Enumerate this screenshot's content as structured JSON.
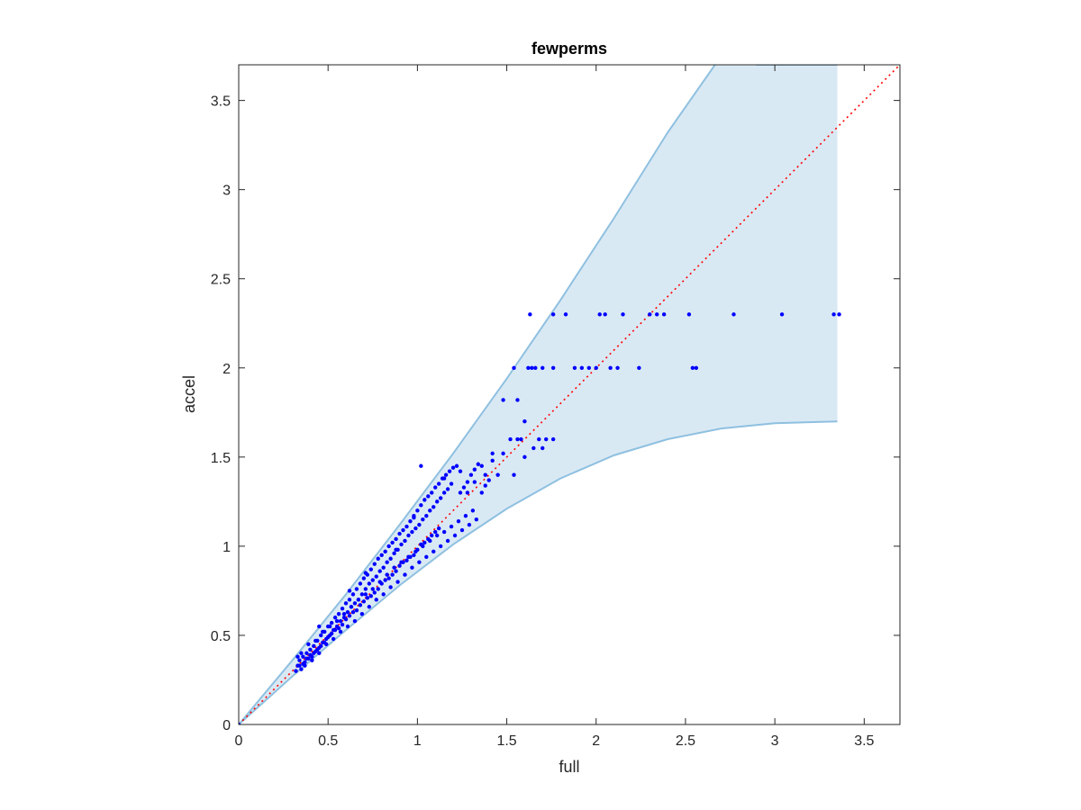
{
  "chart_data": {
    "type": "scatter",
    "title": "fewperms",
    "xlabel": "full",
    "ylabel": "accel",
    "xlim": [
      0,
      3.7
    ],
    "ylim": [
      0,
      3.7
    ],
    "xticks": [
      0,
      0.5,
      1,
      1.5,
      2,
      2.5,
      3,
      3.5
    ],
    "yticks": [
      0,
      0.5,
      1,
      1.5,
      2,
      2.5,
      3,
      3.5
    ],
    "xtick_labels": [
      "0",
      "0.5",
      "1",
      "1.5",
      "2",
      "2.5",
      "3",
      "3.5"
    ],
    "ytick_labels": [
      "0",
      "0.5",
      "1",
      "1.5",
      "2",
      "2.5",
      "3",
      "3.5"
    ],
    "grid": false,
    "colors": {
      "band_fill": "#d9e9f4",
      "band_edge": "#8fc0e0",
      "points": "#0000ff",
      "reference": "#ff0000",
      "axes": "#262626"
    },
    "reference_line": {
      "x": [
        0,
        3.7
      ],
      "y": [
        0,
        3.7
      ],
      "style": "dotted"
    },
    "band": {
      "upper": {
        "x": [
          0,
          0.3,
          0.6,
          0.9,
          1.2,
          1.5,
          1.8,
          2.1,
          2.4,
          2.7,
          2.9,
          3.35
        ],
        "y": [
          0,
          0.36,
          0.73,
          1.12,
          1.52,
          1.94,
          2.38,
          2.84,
          3.32,
          3.75,
          3.7,
          3.7
        ]
      },
      "lower": {
        "x": [
          0,
          0.3,
          0.6,
          0.9,
          1.2,
          1.5,
          1.8,
          2.1,
          2.4,
          2.7,
          3.0,
          3.35
        ],
        "y": [
          0,
          0.27,
          0.53,
          0.78,
          1.01,
          1.21,
          1.38,
          1.51,
          1.6,
          1.66,
          1.69,
          1.7
        ]
      }
    },
    "series": [
      {
        "x": [
          0.32,
          0.33,
          0.34,
          0.35,
          0.36,
          0.37,
          0.38,
          0.39,
          0.4,
          0.41,
          0.42,
          0.43,
          0.44,
          0.45,
          0.46,
          0.47,
          0.48,
          0.49,
          0.5,
          0.51,
          0.52,
          0.53,
          0.54,
          0.55,
          0.56,
          0.57,
          0.58,
          0.59,
          0.6,
          0.61,
          0.62,
          0.63,
          0.64,
          0.65,
          0.66,
          0.67,
          0.68,
          0.69,
          0.7,
          0.71,
          0.72,
          0.73,
          0.74,
          0.75,
          0.76,
          0.77,
          0.78,
          0.79,
          0.8,
          0.81,
          0.82,
          0.83,
          0.84,
          0.85,
          0.86,
          0.87,
          0.88,
          0.89,
          0.9,
          0.91,
          0.92,
          0.93,
          0.94,
          0.95,
          0.96,
          0.97,
          0.98,
          0.99,
          1.0,
          1.01,
          1.02,
          1.03,
          1.04,
          1.05,
          1.06,
          1.07,
          1.08,
          1.09,
          1.1,
          1.11,
          1.12,
          1.13,
          1.14,
          1.15,
          1.16,
          1.17,
          1.18,
          1.19,
          1.2,
          1.22,
          1.24,
          1.26,
          1.28,
          1.3,
          1.32,
          1.34,
          1.36,
          1.38,
          1.4,
          1.42,
          0.33,
          0.35,
          0.37,
          0.39,
          0.41,
          0.43,
          0.45,
          0.47,
          0.49,
          0.51,
          0.53,
          0.55,
          0.57,
          0.59,
          0.61,
          0.63,
          0.65,
          0.67,
          0.69,
          0.71,
          0.73,
          0.75,
          0.77,
          0.79,
          0.81,
          0.83,
          0.85,
          0.87,
          0.89,
          0.91,
          0.93,
          0.95,
          0.97,
          0.99,
          1.01,
          1.03,
          1.05,
          1.07,
          1.09,
          1.11,
          1.13,
          1.15,
          1.17,
          1.19,
          1.21,
          1.23,
          1.25,
          1.27,
          1.29,
          1.31,
          1.33,
          0.34,
          0.36,
          0.38,
          0.4,
          0.42,
          0.44,
          0.46,
          0.48,
          0.5,
          0.52,
          0.54,
          0.56,
          0.58,
          0.6,
          0.62,
          0.64,
          0.66,
          0.68,
          0.7,
          0.72,
          0.74,
          0.76,
          0.78,
          0.8,
          0.82,
          0.84,
          0.86,
          0.88,
          0.9,
          0.92,
          0.94,
          0.96,
          0.98,
          1.0,
          1.02,
          1.04,
          1.06,
          1.08,
          1.1,
          1.12,
          0.45,
          0.62,
          0.71,
          0.88,
          0.98,
          1.02,
          1.15,
          1.24,
          1.28,
          1.32,
          1.36,
          1.38,
          1.42,
          1.45,
          1.48,
          1.52,
          1.54,
          1.56,
          1.58,
          1.6,
          1.65,
          1.68,
          1.7,
          1.72,
          1.76,
          1.48,
          1.54,
          1.56,
          1.6,
          1.62,
          1.64,
          1.66,
          1.7,
          1.76,
          1.88,
          1.92,
          1.96,
          2.0,
          2.08,
          2.12,
          2.24,
          2.54,
          2.56,
          1.63,
          1.76,
          1.83,
          2.02,
          2.05,
          2.15,
          2.3,
          2.34,
          2.38,
          2.52,
          2.77,
          3.04,
          3.33,
          3.36,
          0.0
        ],
        "y": [
          0.3,
          0.33,
          0.36,
          0.31,
          0.38,
          0.35,
          0.4,
          0.37,
          0.42,
          0.38,
          0.44,
          0.41,
          0.47,
          0.43,
          0.5,
          0.46,
          0.52,
          0.48,
          0.55,
          0.5,
          0.57,
          0.53,
          0.6,
          0.55,
          0.62,
          0.58,
          0.65,
          0.6,
          0.68,
          0.63,
          0.7,
          0.66,
          0.73,
          0.68,
          0.76,
          0.7,
          0.79,
          0.73,
          0.82,
          0.76,
          0.84,
          0.79,
          0.87,
          0.81,
          0.9,
          0.83,
          0.93,
          0.86,
          0.95,
          0.88,
          0.97,
          0.91,
          1.0,
          0.93,
          1.02,
          0.96,
          1.04,
          0.98,
          1.07,
          1.01,
          1.09,
          1.03,
          1.11,
          1.06,
          1.14,
          1.08,
          1.17,
          1.1,
          1.2,
          1.12,
          1.23,
          1.15,
          1.26,
          1.17,
          1.28,
          1.2,
          1.3,
          1.22,
          1.33,
          1.25,
          1.35,
          1.27,
          1.38,
          1.3,
          1.4,
          1.32,
          1.42,
          1.35,
          1.44,
          1.45,
          1.3,
          1.33,
          1.36,
          1.4,
          1.43,
          1.46,
          1.3,
          1.34,
          1.37,
          1.52,
          0.38,
          0.4,
          0.33,
          0.45,
          0.36,
          0.47,
          0.4,
          0.52,
          0.45,
          0.55,
          0.48,
          0.58,
          0.52,
          0.62,
          0.55,
          0.66,
          0.58,
          0.7,
          0.62,
          0.73,
          0.66,
          0.76,
          0.7,
          0.8,
          0.73,
          0.84,
          0.77,
          0.88,
          0.8,
          0.91,
          0.84,
          0.94,
          0.88,
          0.97,
          0.91,
          1.0,
          0.94,
          1.03,
          0.97,
          1.06,
          1.0,
          1.08,
          1.03,
          1.11,
          1.06,
          1.14,
          1.09,
          1.17,
          1.12,
          1.2,
          1.15,
          0.33,
          0.34,
          0.37,
          0.39,
          0.4,
          0.42,
          0.44,
          0.46,
          0.49,
          0.51,
          0.53,
          0.54,
          0.56,
          0.59,
          0.61,
          0.63,
          0.64,
          0.67,
          0.69,
          0.71,
          0.72,
          0.74,
          0.76,
          0.79,
          0.81,
          0.82,
          0.84,
          0.86,
          0.89,
          0.91,
          0.92,
          0.94,
          0.95,
          0.98,
          1.01,
          1.02,
          1.04,
          1.06,
          1.08,
          1.1,
          0.55,
          0.75,
          0.85,
          0.98,
          1.16,
          1.45,
          1.38,
          1.42,
          1.3,
          1.36,
          1.45,
          1.4,
          1.48,
          1.4,
          1.52,
          1.6,
          1.4,
          1.82,
          1.6,
          1.7,
          1.55,
          1.6,
          1.55,
          1.6,
          1.6,
          1.82,
          2.0,
          1.6,
          1.5,
          2.0,
          2.0,
          2.0,
          2.0,
          2.0,
          2.0,
          2.0,
          2.0,
          2.0,
          2.0,
          2.0,
          2.0,
          2.0,
          2.0,
          2.3,
          2.3,
          2.3,
          2.3,
          2.3,
          2.3,
          2.3,
          2.3,
          2.3,
          2.3,
          2.3,
          2.3,
          2.3,
          2.3,
          0.0
        ]
      }
    ]
  }
}
